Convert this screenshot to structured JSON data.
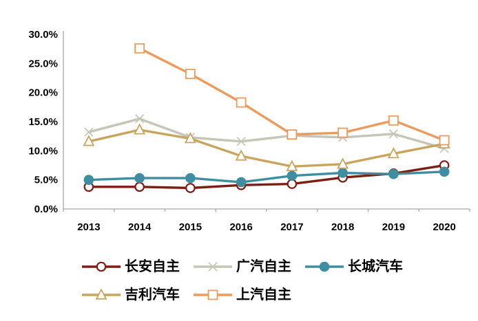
{
  "chart_data": {
    "type": "line",
    "title": "",
    "xlabel": "",
    "ylabel": "",
    "categories": [
      "2013",
      "2014",
      "2015",
      "2016",
      "2017",
      "2018",
      "2019",
      "2020"
    ],
    "series": [
      {
        "name": "长安自主",
        "color": "#7E1D12",
        "marker": "open-circle",
        "values": [
          3.8,
          3.8,
          3.6,
          4.1,
          4.3,
          5.4,
          6.1,
          7.5
        ]
      },
      {
        "name": "广汽自主",
        "color": "#C6C5B6",
        "marker": "x",
        "values": [
          13.2,
          15.5,
          12.3,
          11.6,
          12.6,
          12.3,
          12.9,
          10.4
        ]
      },
      {
        "name": "长城汽车",
        "color": "#3E8DA1",
        "marker": "filled-circle",
        "values": [
          5.0,
          5.3,
          5.3,
          4.6,
          5.7,
          6.2,
          6.0,
          6.4
        ]
      },
      {
        "name": "吉利汽车",
        "color": "#C9A45E",
        "marker": "open-triangle",
        "values": [
          11.6,
          13.6,
          12.1,
          9.1,
          7.3,
          7.7,
          9.5,
          11.2
        ]
      },
      {
        "name": "上汽自主",
        "color": "#EC9B5F",
        "marker": "open-square",
        "values": [
          null,
          27.6,
          23.2,
          18.3,
          12.8,
          13.1,
          15.2,
          11.8
        ]
      }
    ],
    "ylim": [
      0,
      30
    ],
    "ytick_step": 5,
    "ytick_labels": [
      "0.0%",
      "5.0%",
      "10.0%",
      "15.0%",
      "20.0%",
      "25.0%",
      "30.0%"
    ],
    "grid": false,
    "legend_position": "bottom",
    "legend_rows": [
      [
        0,
        1,
        2
      ],
      [
        3,
        4
      ]
    ],
    "axis_color": "#A6A6A6",
    "text_color": "#000000",
    "background_color": "#FFFFFF"
  }
}
